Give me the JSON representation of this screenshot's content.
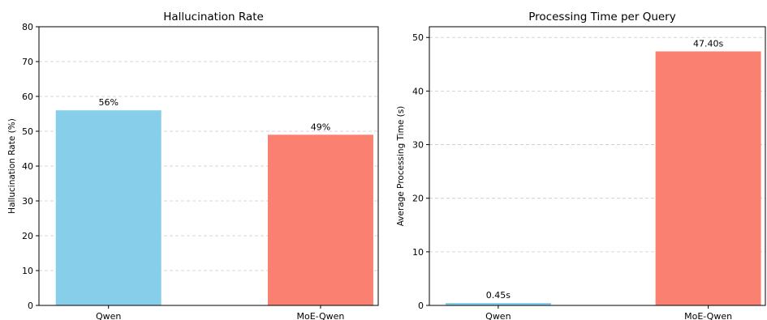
{
  "chart_data": [
    {
      "type": "bar",
      "title": "Hallucination Rate",
      "xlabel": "",
      "ylabel": "Hallucination Rate (%)",
      "categories": [
        "Qwen",
        "MoE-Qwen"
      ],
      "values": [
        56,
        49
      ],
      "data_labels": [
        "56%",
        "49%"
      ],
      "bar_colors": [
        "#87ceeb",
        "#fa8072"
      ],
      "ylim": [
        0,
        80
      ],
      "yticks": [
        0,
        10,
        20,
        30,
        40,
        50,
        60,
        70,
        80
      ],
      "grid": "y-dashed",
      "legend": "none"
    },
    {
      "type": "bar",
      "title": "Processing Time per Query",
      "xlabel": "",
      "ylabel": "Average Processing Time (s)",
      "categories": [
        "Qwen",
        "MoE-Qwen"
      ],
      "values": [
        0.45,
        47.4
      ],
      "data_labels": [
        "0.45s",
        "47.40s"
      ],
      "bar_colors": [
        "#87ceeb",
        "#fa8072"
      ],
      "ylim": [
        0,
        52
      ],
      "yticks": [
        0,
        10,
        20,
        30,
        40,
        50
      ],
      "grid": "y-dashed",
      "legend": "none"
    }
  ]
}
